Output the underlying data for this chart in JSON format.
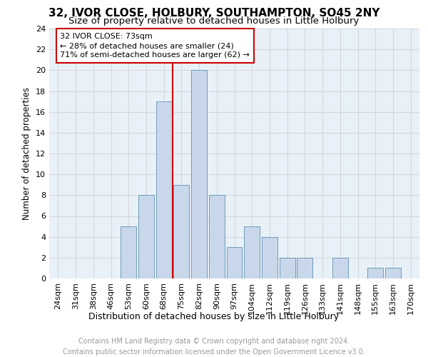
{
  "title1": "32, IVOR CLOSE, HOLBURY, SOUTHAMPTON, SO45 2NY",
  "title2": "Size of property relative to detached houses in Little Holbury",
  "xlabel": "Distribution of detached houses by size in Little Holbury",
  "ylabel": "Number of detached properties",
  "categories": [
    "24sqm",
    "31sqm",
    "38sqm",
    "46sqm",
    "53sqm",
    "60sqm",
    "68sqm",
    "75sqm",
    "82sqm",
    "90sqm",
    "97sqm",
    "104sqm",
    "112sqm",
    "119sqm",
    "126sqm",
    "133sqm",
    "141sqm",
    "148sqm",
    "155sqm",
    "163sqm",
    "170sqm"
  ],
  "values": [
    0,
    0,
    0,
    0,
    5,
    8,
    17,
    9,
    20,
    8,
    3,
    5,
    4,
    2,
    2,
    0,
    2,
    0,
    1,
    1,
    0
  ],
  "bar_color": "#c8d8ea",
  "bar_edge_color": "#6090b0",
  "vline_x": 7.0,
  "vline_color": "#cc0000",
  "annotation_line1": "32 IVOR CLOSE: 73sqm",
  "annotation_line2": "← 28% of detached houses are smaller (24)",
  "annotation_line3": "71% of semi-detached houses are larger (62) →",
  "annotation_box_color": "#ffffff",
  "annotation_box_edge_color": "#cc0000",
  "ylim": [
    0,
    24
  ],
  "yticks": [
    0,
    2,
    4,
    6,
    8,
    10,
    12,
    14,
    16,
    18,
    20,
    22,
    24
  ],
  "grid_color": "#cccccc",
  "bg_color": "#e8f0f8",
  "footer_line1": "Contains HM Land Registry data © Crown copyright and database right 2024.",
  "footer_line2": "Contains public sector information licensed under the Open Government Licence v3.0.",
  "title1_fontsize": 11,
  "title2_fontsize": 9.5,
  "xlabel_fontsize": 9,
  "ylabel_fontsize": 8.5,
  "tick_fontsize": 8,
  "annotation_fontsize": 8,
  "footer_fontsize": 7
}
